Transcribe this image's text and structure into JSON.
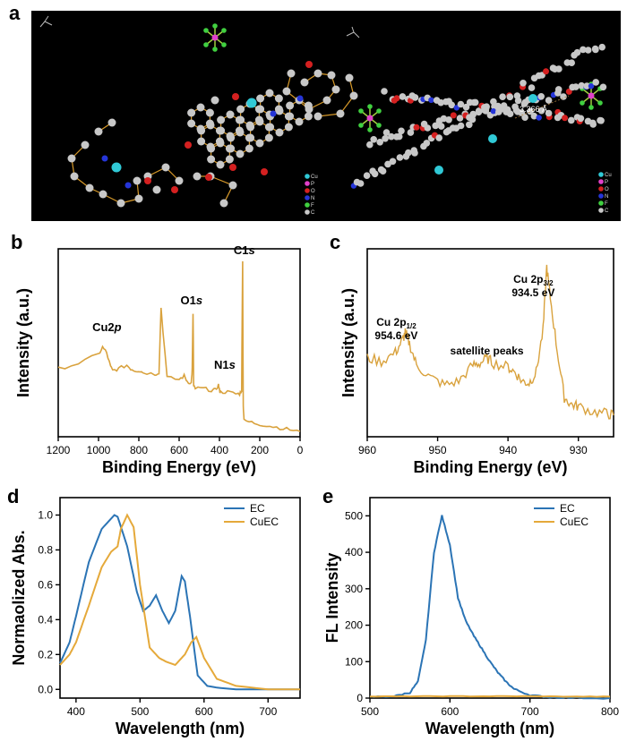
{
  "panels": {
    "a": "a",
    "b": "b",
    "c": "c",
    "d": "d",
    "e": "e"
  },
  "colors": {
    "ec": "#2b74b5",
    "cuec": "#e5a93a",
    "xps": "#d9a23d"
  },
  "crystal": {
    "distance_label": "3.366 Å",
    "elements": [
      {
        "symbol": "Cu",
        "color": "#30c9d6"
      },
      {
        "symbol": "P",
        "color": "#e040c8"
      },
      {
        "symbol": "O",
        "color": "#d42020"
      },
      {
        "symbol": "N",
        "color": "#2535d8"
      },
      {
        "symbol": "F",
        "color": "#40d040"
      },
      {
        "symbol": "C",
        "color": "#c8c8c8"
      }
    ]
  },
  "chart_data": [
    {
      "panel": "b",
      "type": "line",
      "xlabel": "Binding Energy (eV)",
      "ylabel": "Intensity (a.u.)",
      "xlim": [
        1200,
        0
      ],
      "xreversed": true,
      "xticks": [
        "1200",
        "1000",
        "800",
        "600",
        "400",
        "200",
        "0"
      ],
      "annotations": [
        {
          "text": "C1",
          "italic": "s",
          "x": 285
        },
        {
          "text": "O1",
          "italic": "s",
          "x": 531
        },
        {
          "text": "N1",
          "italic": "s",
          "x": 400
        },
        {
          "text": "Cu2",
          "italic": "p",
          "x": 933
        }
      ],
      "series": [
        {
          "x": [
            1200,
            1100,
            1000,
            980,
            960,
            940,
            930,
            900,
            860,
            840,
            820,
            800,
            780,
            720,
            700,
            690,
            660,
            600,
            575,
            560,
            540,
            535,
            531,
            528,
            520,
            480,
            440,
            420,
            405,
            400,
            395,
            360,
            320,
            300,
            290,
            285,
            282,
            278,
            240,
            200,
            150,
            100,
            50,
            0
          ],
          "y": [
            0.38,
            0.41,
            0.46,
            0.5,
            0.47,
            0.39,
            0.37,
            0.38,
            0.4,
            0.38,
            0.37,
            0.37,
            0.36,
            0.35,
            0.36,
            0.72,
            0.33,
            0.32,
            0.34,
            0.31,
            0.3,
            0.38,
            0.69,
            0.28,
            0.27,
            0.27,
            0.26,
            0.26,
            0.29,
            0.26,
            0.25,
            0.25,
            0.24,
            0.24,
            0.26,
            0.99,
            0.18,
            0.09,
            0.08,
            0.07,
            0.06,
            0.05,
            0.04,
            0.03
          ]
        }
      ]
    },
    {
      "panel": "c",
      "type": "line",
      "xlabel": "Binding Energy (eV)",
      "ylabel": "Intensity (a.u.)",
      "xlim": [
        960,
        925
      ],
      "xreversed": true,
      "xticks": [
        "960",
        "950",
        "940",
        "930"
      ],
      "annotations": [
        {
          "line1": "Cu 2p",
          "sub": "3/2",
          "line2": "934.5 eV"
        },
        {
          "line1": "Cu 2p",
          "sub": "1/2",
          "line2": "954.6 eV"
        },
        {
          "text": "satellite peaks"
        }
      ],
      "series": [
        {
          "x": [
            960,
            958,
            956,
            955,
            954.6,
            954,
            953,
            951,
            949,
            947,
            945,
            944,
            943,
            942,
            940,
            939,
            938,
            937,
            936,
            935,
            934.5,
            934,
            933,
            932,
            931,
            930,
            928,
            926,
            925
          ],
          "y": [
            0.44,
            0.42,
            0.47,
            0.54,
            0.58,
            0.52,
            0.4,
            0.33,
            0.29,
            0.31,
            0.4,
            0.41,
            0.44,
            0.41,
            0.39,
            0.36,
            0.31,
            0.3,
            0.36,
            0.6,
            0.95,
            0.78,
            0.48,
            0.22,
            0.18,
            0.17,
            0.14,
            0.13,
            0.12
          ]
        }
      ]
    },
    {
      "panel": "d",
      "type": "line",
      "xlabel": "Wavelength (nm)",
      "ylabel": "Normaolized Abs.",
      "xlim": [
        375,
        750
      ],
      "ylim": [
        -0.05,
        1.1
      ],
      "xticks": [
        "400",
        "500",
        "600",
        "700"
      ],
      "yticks": [
        "0.0",
        "0.2",
        "0.4",
        "0.6",
        "0.8",
        "1.0"
      ],
      "legend": "top-right",
      "series": [
        {
          "name": "EC",
          "x": [
            375,
            390,
            400,
            420,
            440,
            460,
            465,
            480,
            495,
            505,
            515,
            525,
            535,
            545,
            555,
            565,
            570,
            578,
            590,
            605,
            620,
            650,
            700,
            750
          ],
          "y": [
            0.15,
            0.27,
            0.42,
            0.73,
            0.92,
            1.0,
            0.99,
            0.82,
            0.56,
            0.45,
            0.48,
            0.54,
            0.45,
            0.38,
            0.45,
            0.65,
            0.62,
            0.42,
            0.08,
            0.02,
            0.01,
            0.0,
            0.0,
            0.0
          ]
        },
        {
          "name": "CuEC",
          "x": [
            375,
            390,
            400,
            420,
            440,
            455,
            465,
            470,
            480,
            490,
            500,
            515,
            530,
            540,
            555,
            570,
            580,
            588,
            600,
            620,
            650,
            700,
            750
          ],
          "y": [
            0.14,
            0.2,
            0.27,
            0.48,
            0.7,
            0.79,
            0.82,
            0.92,
            1.0,
            0.93,
            0.6,
            0.24,
            0.18,
            0.16,
            0.14,
            0.2,
            0.27,
            0.3,
            0.18,
            0.06,
            0.02,
            0.0,
            0.0
          ]
        }
      ]
    },
    {
      "panel": "e",
      "type": "line",
      "xlabel": "Wavelength (nm)",
      "ylabel": "FL Intensity",
      "xlim": [
        500,
        800
      ],
      "ylim": [
        0,
        550
      ],
      "xticks": [
        "500",
        "600",
        "700",
        "800"
      ],
      "yticks": [
        "0",
        "100",
        "200",
        "300",
        "400",
        "500"
      ],
      "legend": "top-right",
      "series": [
        {
          "name": "EC",
          "x": [
            500,
            530,
            550,
            560,
            570,
            580,
            590,
            600,
            610,
            620,
            630,
            640,
            650,
            660,
            670,
            680,
            700,
            720,
            750,
            800
          ],
          "y": [
            3,
            5,
            15,
            45,
            160,
            400,
            500,
            420,
            275,
            210,
            170,
            135,
            100,
            70,
            45,
            25,
            8,
            3,
            1,
            0
          ]
        },
        {
          "name": "CuEC",
          "x": [
            500,
            550,
            600,
            650,
            700,
            750,
            800
          ],
          "y": [
            4,
            5,
            5,
            5,
            5,
            4,
            4
          ]
        }
      ]
    }
  ]
}
